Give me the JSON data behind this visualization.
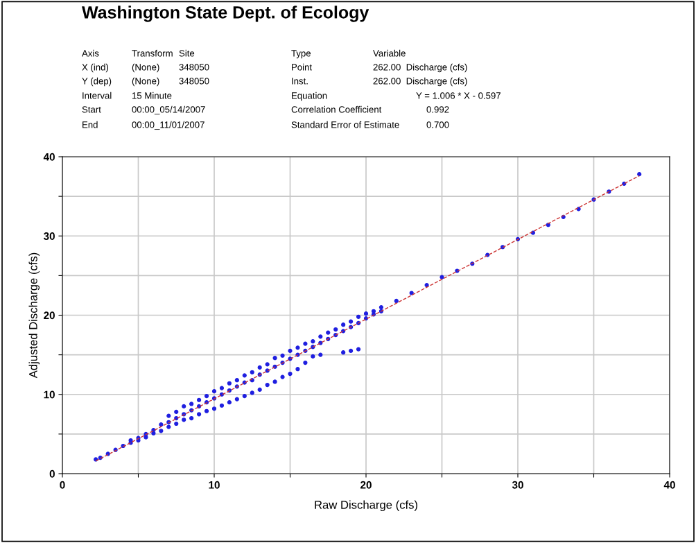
{
  "chart_data": {
    "type": "scatter",
    "title": "Washington State Dept. of Ecology",
    "xlabel": "Raw Discharge (cfs)",
    "ylabel": "Adjusted Discharge (cfs)",
    "annotations": [
      "Axis",
      "Transform",
      "Site",
      "Type",
      "Variable",
      "X (ind)",
      "(None)",
      "348050",
      "Point",
      "262.00  Discharge (cfs)",
      "Y (dep)",
      "(None)",
      "348050",
      "Inst.",
      "262.00  Discharge (cfs)",
      "Interval",
      "15 Minute",
      "Equation",
      "Y = 1.006 * X - 0.597",
      "Start",
      "00:00_05/14/2007",
      "Correlation Coefficient",
      "0.992",
      "End",
      "00:00_11/01/2007",
      "Standard Error of Estimate",
      "0.700"
    ],
    "xlim": [
      0,
      40
    ],
    "ylim": [
      0,
      40
    ],
    "xticks": [
      0,
      {
        "value": 5,
        "label": null
      },
      10,
      {
        "value": 15,
        "label": null
      },
      20,
      {
        "value": 25,
        "label": null
      },
      30,
      {
        "value": 35,
        "label": null
      },
      40
    ],
    "yticks": [
      0,
      {
        "value": 5,
        "label": null
      },
      10,
      {
        "value": 15,
        "label": null
      },
      20,
      {
        "value": 25,
        "label": null
      },
      30,
      {
        "value": 35,
        "label": null
      },
      40
    ],
    "grid": true,
    "marker": "circle",
    "series": [
      {
        "color": "#1f1fe0",
        "x": [
          2.2,
          2.5,
          3,
          3.5,
          4,
          4.5,
          4.5,
          5,
          5,
          5.5,
          5.5,
          6,
          6,
          6.5,
          6.5,
          7,
          7,
          7,
          7.5,
          7.5,
          7.5,
          8,
          8,
          8,
          8.5,
          8.5,
          8.5,
          9,
          9,
          9,
          9.5,
          9.5,
          9.5,
          10,
          10,
          10,
          10.5,
          10.5,
          10.5,
          11,
          11,
          11,
          11.5,
          11.5,
          11.5,
          12,
          12,
          12,
          12.5,
          12.5,
          12.5,
          13,
          13,
          13,
          13.5,
          13.5,
          13.5,
          14,
          14,
          14,
          14.5,
          14.5,
          14.5,
          15,
          15,
          15,
          15.5,
          15.5,
          15.5,
          16,
          16,
          16,
          16.5,
          16.5,
          16.5,
          17,
          17,
          17,
          17.5,
          17.5,
          18,
          18,
          18.5,
          18.5,
          18.5,
          19,
          19,
          19,
          19.5,
          19.5,
          19.5,
          20,
          20,
          20.5,
          20.5,
          21,
          21,
          22,
          23,
          24,
          25,
          26,
          27,
          28,
          29,
          30,
          31,
          32,
          33,
          34,
          35,
          36,
          37,
          38
        ],
        "values": [
          1.8,
          2.0,
          2.5,
          3.0,
          3.5,
          3.9,
          4.2,
          4.5,
          4.2,
          5.0,
          4.6,
          5.5,
          5.1,
          6.2,
          5.4,
          7.3,
          6.5,
          5.9,
          7.8,
          7.0,
          6.3,
          8.5,
          7.5,
          6.8,
          8.8,
          8.0,
          7.0,
          9.3,
          8.5,
          7.5,
          9.8,
          9.0,
          7.9,
          10.4,
          9.5,
          8.2,
          10.8,
          10.0,
          8.6,
          11.4,
          10.5,
          9.0,
          11.8,
          11.0,
          9.4,
          12.4,
          11.5,
          9.8,
          12.8,
          11.8,
          10.2,
          13.4,
          12.5,
          10.6,
          13.8,
          13.0,
          11.2,
          14.6,
          13.5,
          11.6,
          14.9,
          14.0,
          12.2,
          15.5,
          14.5,
          12.6,
          15.9,
          15.0,
          13.2,
          16.4,
          15.5,
          14.0,
          16.7,
          16.0,
          14.8,
          17.3,
          16.5,
          15.0,
          17.8,
          17.0,
          18.2,
          17.5,
          18.8,
          18.0,
          15.3,
          19.2,
          18.5,
          15.5,
          19.8,
          19.0,
          15.7,
          20.2,
          19.6,
          20.5,
          20.1,
          21.0,
          20.5,
          21.8,
          22.8,
          23.8,
          24.8,
          25.6,
          26.5,
          27.6,
          28.6,
          29.6,
          30.4,
          31.4,
          32.4,
          33.4,
          34.6,
          35.6,
          36.6,
          37.8
        ]
      },
      {
        "type": "line",
        "color": "#cc3333",
        "line_style": "dashed",
        "marker": "none",
        "x": [
          2.2,
          38
        ],
        "values": [
          1.6,
          37.6
        ]
      }
    ]
  }
}
